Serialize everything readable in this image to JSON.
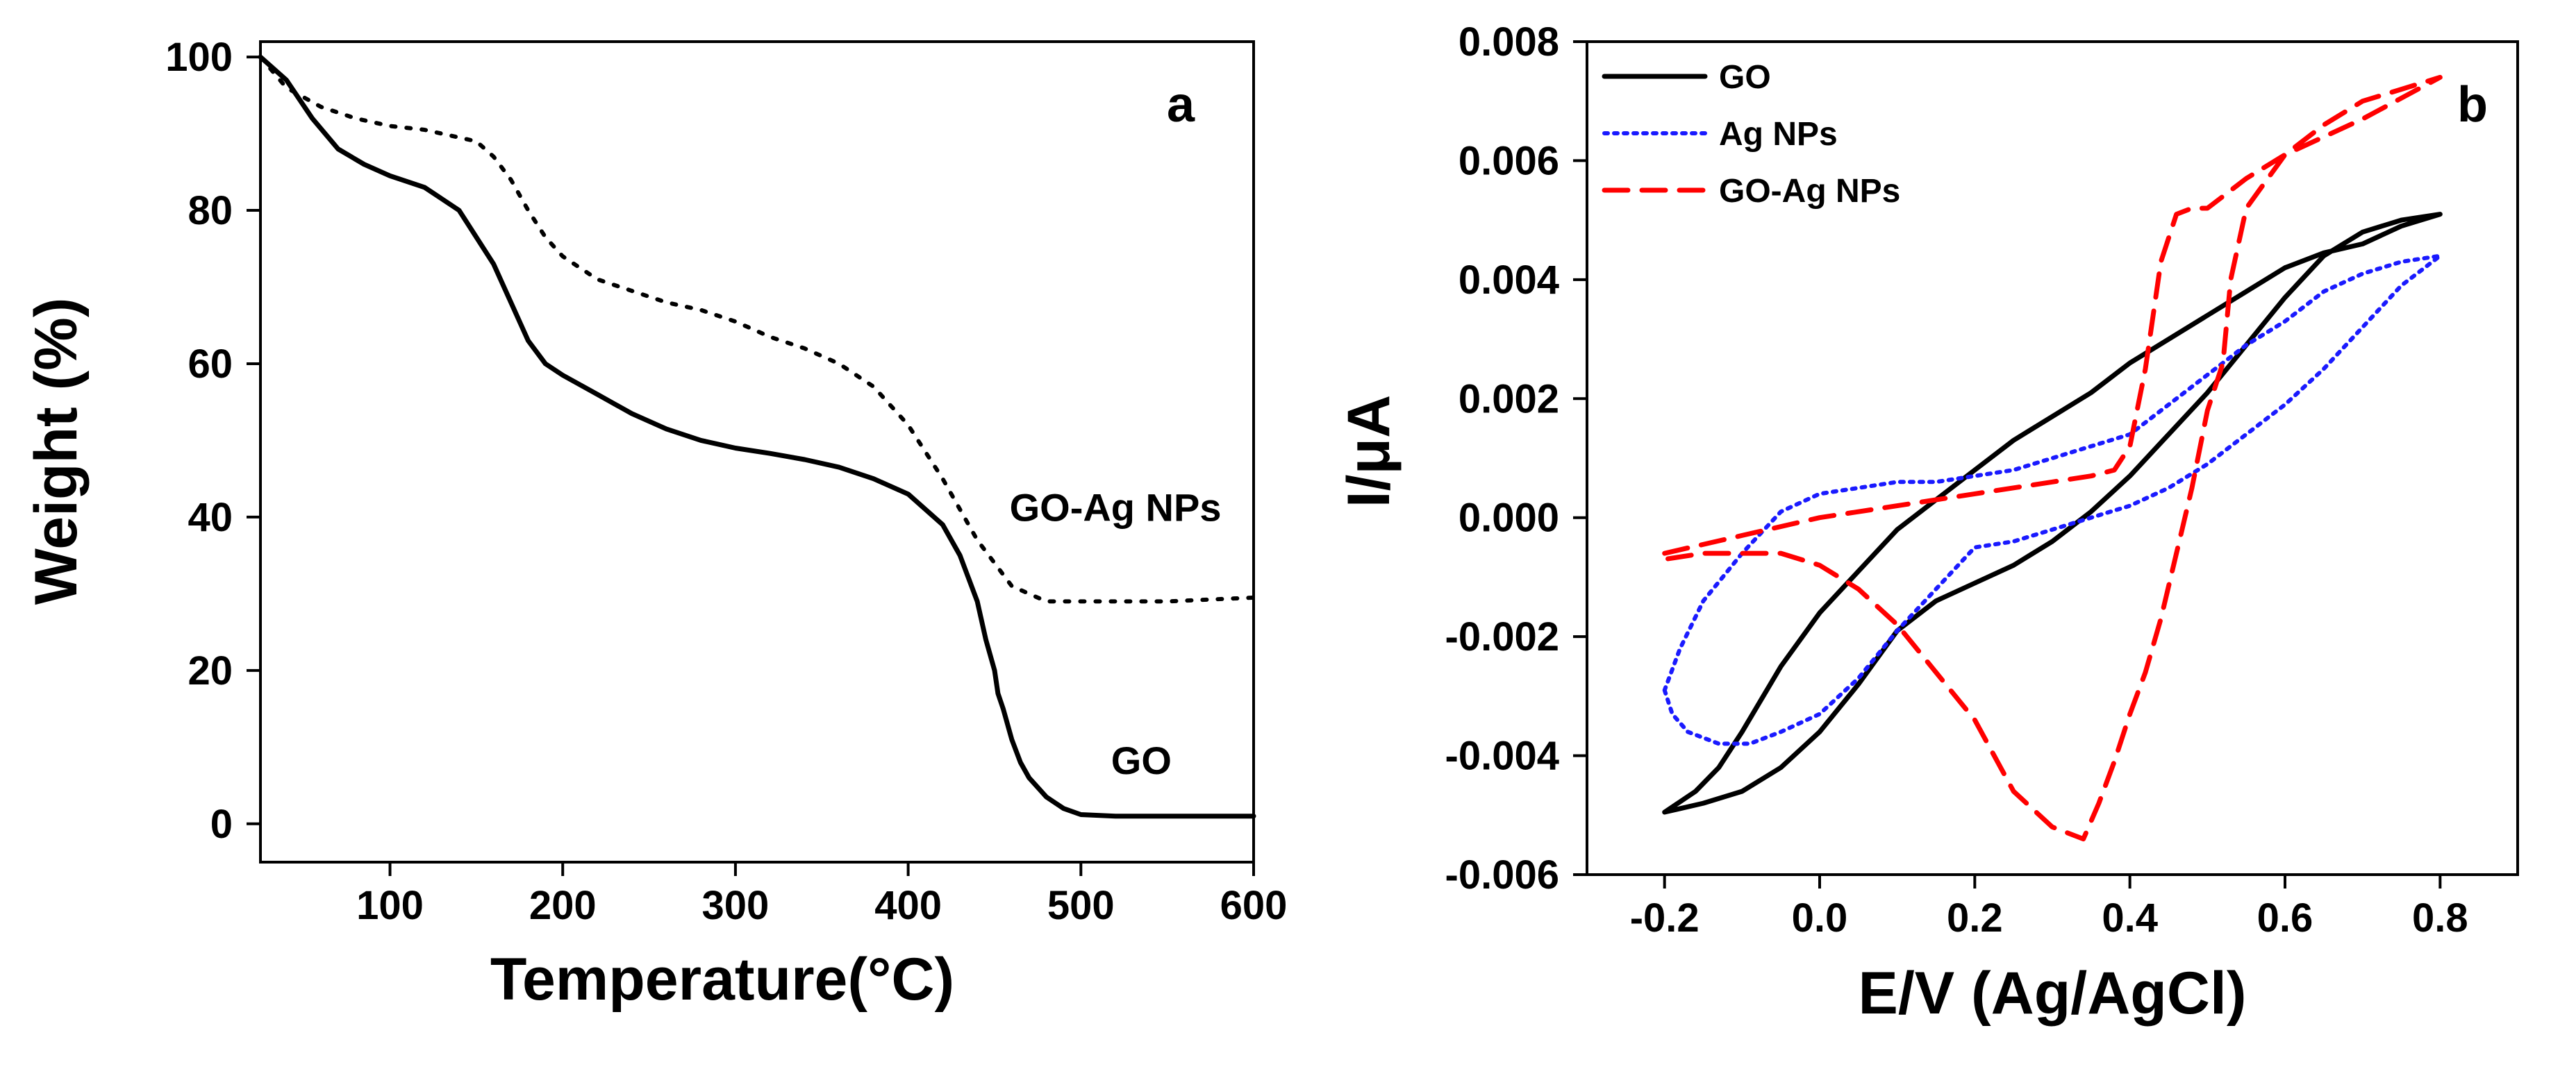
{
  "chart_data": [
    {
      "type": "line",
      "panel": "a",
      "xlabel": "Temperature(°C)",
      "ylabel": "Weight (%)",
      "xlim": [
        25,
        600
      ],
      "ylim": [
        -5,
        102
      ],
      "xticks": [
        100,
        200,
        300,
        400,
        500,
        600
      ],
      "yticks": [
        0,
        20,
        40,
        60,
        80,
        100
      ],
      "annotations": [
        {
          "text": "GO-Ag NPs",
          "x": 520,
          "y": 39.5
        },
        {
          "text": "GO",
          "x": 535,
          "y": 6.5
        }
      ],
      "series": [
        {
          "name": "GO",
          "style": "solid",
          "color": "#000000",
          "x": [
            25,
            40,
            55,
            70,
            85,
            100,
            120,
            140,
            160,
            170,
            180,
            190,
            200,
            220,
            240,
            260,
            280,
            300,
            320,
            340,
            360,
            380,
            400,
            420,
            430,
            440,
            445,
            450,
            452,
            455,
            460,
            465,
            470,
            480,
            490,
            500,
            520,
            550,
            600
          ],
          "y": [
            100,
            97,
            92,
            88,
            86,
            84.5,
            83,
            80,
            73,
            68,
            63,
            60,
            58.5,
            56,
            53.5,
            51.5,
            50,
            49,
            48.3,
            47.5,
            46.5,
            45,
            43,
            39,
            35,
            29,
            24,
            20,
            17,
            15,
            11,
            8,
            6,
            3.5,
            2,
            1.2,
            1,
            1,
            1
          ]
        },
        {
          "name": "GO-Ag NPs",
          "style": "dotted",
          "color": "#000000",
          "x": [
            25,
            40,
            60,
            80,
            100,
            120,
            140,
            150,
            160,
            170,
            180,
            190,
            200,
            220,
            240,
            260,
            280,
            300,
            320,
            340,
            360,
            380,
            400,
            420,
            430,
            440,
            450,
            460,
            470,
            480,
            500,
            520,
            550,
            600
          ],
          "y": [
            100,
            96,
            93.5,
            92,
            91,
            90.5,
            89.5,
            89,
            87,
            84,
            80,
            76.5,
            74,
            71,
            69.5,
            68,
            67,
            65.5,
            63.5,
            62,
            60,
            57,
            52,
            45,
            41,
            37,
            34,
            31,
            30,
            29,
            29,
            29,
            29,
            29.5
          ]
        }
      ]
    },
    {
      "type": "line",
      "panel": "b",
      "xlabel": "E/V (Ag/AgCl)",
      "ylabel": "I/μA",
      "xlim": [
        -0.3,
        0.9
      ],
      "ylim": [
        -0.006,
        0.008
      ],
      "xticks": [
        "-0.2",
        "0.0",
        "0.2",
        "0.4",
        "0.6",
        "0.8"
      ],
      "yticks": [
        "-0.006",
        "-0.004",
        "-0.002",
        "0.000",
        "0.002",
        "0.004",
        "0.006",
        "0.008"
      ],
      "legend_position": "top-left",
      "series": [
        {
          "name": "GO",
          "style": "solid",
          "color": "#000000",
          "x": [
            -0.2,
            -0.15,
            -0.1,
            -0.05,
            0.0,
            0.05,
            0.1,
            0.15,
            0.2,
            0.25,
            0.3,
            0.35,
            0.4,
            0.45,
            0.5,
            0.55,
            0.6,
            0.65,
            0.7,
            0.75,
            0.8,
            0.75,
            0.7,
            0.65,
            0.6,
            0.55,
            0.5,
            0.45,
            0.4,
            0.35,
            0.3,
            0.25,
            0.2,
            0.15,
            0.1,
            0.05,
            0.0,
            -0.05,
            -0.1,
            -0.13,
            -0.16,
            -0.2
          ],
          "y": [
            -0.00495,
            -0.0048,
            -0.0046,
            -0.0042,
            -0.0036,
            -0.0028,
            -0.0019,
            -0.0014,
            -0.0011,
            -0.0008,
            -0.0004,
            0.0001,
            0.0007,
            0.0014,
            0.0021,
            0.0029,
            0.0037,
            0.0044,
            0.0048,
            0.005,
            0.0051,
            0.0049,
            0.0046,
            0.00445,
            0.0042,
            0.0038,
            0.0034,
            0.003,
            0.0026,
            0.0021,
            0.0017,
            0.0013,
            0.0008,
            0.0003,
            -0.0002,
            -0.0009,
            -0.0016,
            -0.0025,
            -0.0036,
            -0.0042,
            -0.0046,
            -0.00495
          ]
        },
        {
          "name": "Ag NPs",
          "style": "dotted",
          "color": "#1a1aff",
          "x": [
            -0.2,
            -0.19,
            -0.17,
            -0.13,
            -0.09,
            -0.05,
            0.0,
            0.05,
            0.1,
            0.15,
            0.2,
            0.25,
            0.3,
            0.35,
            0.4,
            0.45,
            0.5,
            0.55,
            0.6,
            0.65,
            0.7,
            0.75,
            0.8,
            0.75,
            0.7,
            0.65,
            0.6,
            0.55,
            0.5,
            0.45,
            0.4,
            0.35,
            0.3,
            0.25,
            0.2,
            0.15,
            0.1,
            0.05,
            0.0,
            -0.05,
            -0.1,
            -0.15,
            -0.18,
            -0.2
          ],
          "y": [
            -0.0029,
            -0.0033,
            -0.0036,
            -0.0038,
            -0.0038,
            -0.0036,
            -0.0033,
            -0.0027,
            -0.0019,
            -0.0012,
            -0.0005,
            -0.0004,
            -0.0002,
            0.0,
            0.0002,
            0.0005,
            0.0009,
            0.0014,
            0.0019,
            0.0025,
            0.0032,
            0.0039,
            0.0044,
            0.0043,
            0.0041,
            0.0038,
            0.0033,
            0.0029,
            0.0024,
            0.0019,
            0.0014,
            0.0012,
            0.001,
            0.0008,
            0.0007,
            0.0006,
            0.0006,
            0.0005,
            0.0004,
            0.0001,
            -0.0006,
            -0.0014,
            -0.0022,
            -0.0029
          ]
        },
        {
          "name": "GO-Ag NPs",
          "style": "dashed",
          "color": "#ff0000",
          "x": [
            -0.2,
            -0.1,
            0.0,
            0.1,
            0.2,
            0.3,
            0.35,
            0.38,
            0.4,
            0.42,
            0.44,
            0.46,
            0.48,
            0.5,
            0.52,
            0.55,
            0.6,
            0.65,
            0.7,
            0.75,
            0.8,
            0.8,
            0.7,
            0.6,
            0.55,
            0.53,
            0.52,
            0.5,
            0.48,
            0.46,
            0.44,
            0.42,
            0.4,
            0.38,
            0.36,
            0.34,
            0.3,
            0.25,
            0.2,
            0.15,
            0.1,
            0.05,
            0.0,
            -0.05,
            -0.1,
            -0.15,
            -0.2
          ],
          "y": [
            -0.0006,
            -0.0003,
            0.0,
            0.0002,
            0.0004,
            0.0006,
            0.0007,
            0.0008,
            0.0012,
            0.0025,
            0.0043,
            0.0051,
            0.0052,
            0.0052,
            0.0054,
            0.0057,
            0.0061,
            0.0066,
            0.007,
            0.0072,
            0.0074,
            0.0074,
            0.0067,
            0.0061,
            0.0052,
            0.004,
            0.0026,
            0.0018,
            0.0005,
            -0.0006,
            -0.0017,
            -0.0026,
            -0.0033,
            -0.0041,
            -0.0048,
            -0.0054,
            -0.0052,
            -0.0046,
            -0.0034,
            -0.0026,
            -0.0018,
            -0.0012,
            -0.0008,
            -0.0006,
            -0.0006,
            -0.0006,
            -0.0007
          ]
        }
      ]
    }
  ]
}
